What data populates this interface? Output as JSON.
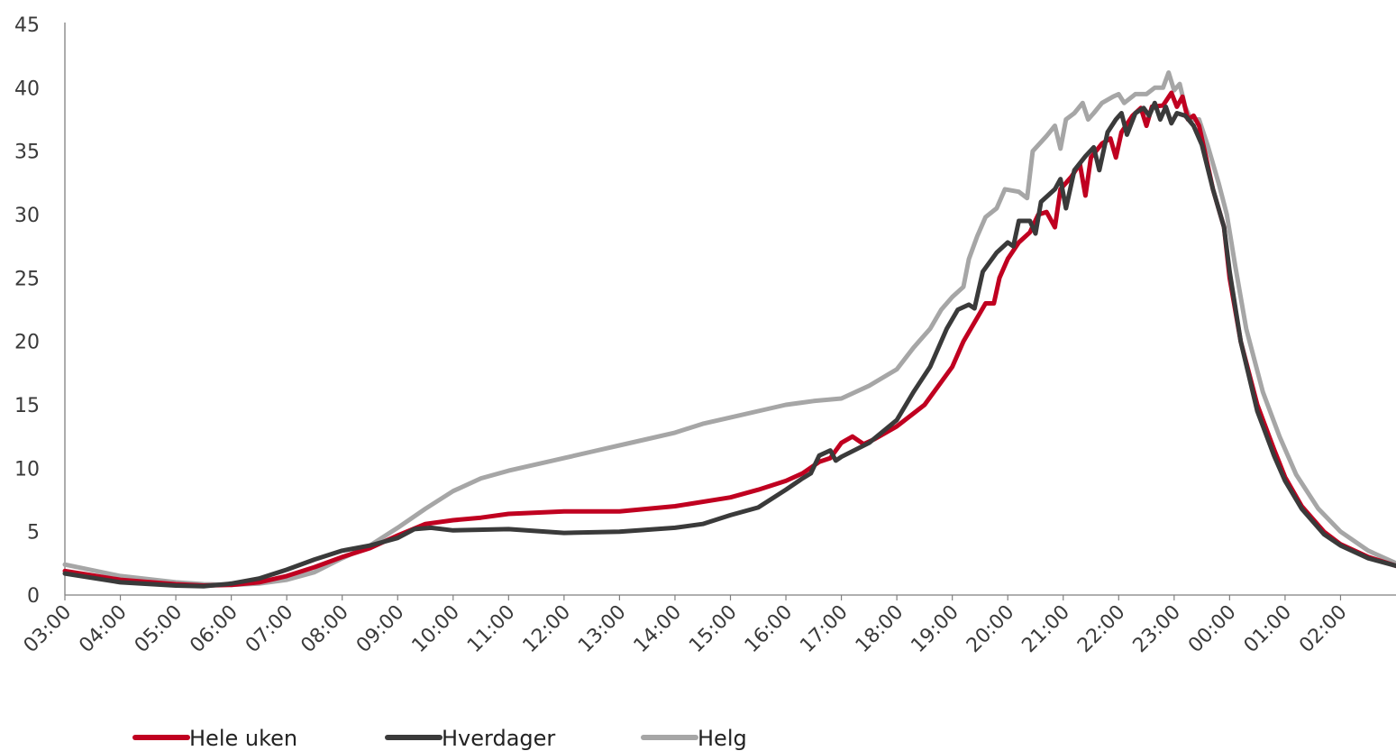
{
  "chart_data": {
    "type": "line",
    "title": "",
    "xlabel": "",
    "ylabel": "",
    "ylim": [
      0,
      45
    ],
    "yticks": [
      0,
      5,
      10,
      15,
      20,
      25,
      30,
      35,
      40,
      45
    ],
    "x_categories": [
      "03:00",
      "04:00",
      "05:00",
      "06:00",
      "07:00",
      "08:00",
      "09:00",
      "10:00",
      "11:00",
      "12:00",
      "13:00",
      "14:00",
      "15:00",
      "16:00",
      "17:00",
      "18:00",
      "19:00",
      "20:00",
      "21:00",
      "22:00",
      "23:00",
      "00:00",
      "01:00",
      "02:00"
    ],
    "x_unit": "hours after 03:00",
    "grid": false,
    "legend_position": "bottom-left",
    "series": [
      {
        "name": "Hele uken",
        "color": "#c00020",
        "points": [
          [
            0,
            1.9
          ],
          [
            1,
            1.2
          ],
          [
            2,
            0.85
          ],
          [
            2.5,
            0.75
          ],
          [
            3,
            0.8
          ],
          [
            3.5,
            1.0
          ],
          [
            4,
            1.5
          ],
          [
            4.5,
            2.2
          ],
          [
            5,
            3.0
          ],
          [
            5.5,
            3.7
          ],
          [
            6,
            4.7
          ],
          [
            6.5,
            5.6
          ],
          [
            7,
            5.9
          ],
          [
            7.5,
            6.1
          ],
          [
            8,
            6.4
          ],
          [
            9,
            6.6
          ],
          [
            10,
            6.6
          ],
          [
            11,
            7.0
          ],
          [
            12,
            7.7
          ],
          [
            12.5,
            8.3
          ],
          [
            13,
            9.0
          ],
          [
            13.3,
            9.6
          ],
          [
            13.6,
            10.5
          ],
          [
            13.8,
            10.8
          ],
          [
            14,
            12.0
          ],
          [
            14.2,
            12.5
          ],
          [
            14.4,
            11.9
          ],
          [
            14.6,
            12.3
          ],
          [
            15,
            13.3
          ],
          [
            15.5,
            15.0
          ],
          [
            16,
            18.0
          ],
          [
            16.2,
            20.0
          ],
          [
            16.4,
            21.5
          ],
          [
            16.6,
            23.0
          ],
          [
            16.75,
            23.0
          ],
          [
            16.85,
            25.0
          ],
          [
            17,
            26.5
          ],
          [
            17.2,
            27.8
          ],
          [
            17.4,
            28.6
          ],
          [
            17.55,
            30.0
          ],
          [
            17.7,
            30.2
          ],
          [
            17.85,
            29.0
          ],
          [
            17.95,
            32.0
          ],
          [
            18.15,
            33.0
          ],
          [
            18.3,
            34.0
          ],
          [
            18.4,
            31.5
          ],
          [
            18.5,
            34.5
          ],
          [
            18.7,
            35.6
          ],
          [
            18.85,
            36.0
          ],
          [
            18.95,
            34.5
          ],
          [
            19.05,
            36.5
          ],
          [
            19.25,
            37.8
          ],
          [
            19.4,
            38.4
          ],
          [
            19.5,
            37.0
          ],
          [
            19.6,
            38.5
          ],
          [
            19.8,
            38.6
          ],
          [
            19.95,
            39.6
          ],
          [
            20.05,
            38.5
          ],
          [
            20.15,
            39.3
          ],
          [
            20.25,
            37.5
          ],
          [
            20.35,
            37.8
          ],
          [
            20.45,
            37.0
          ],
          [
            20.55,
            35.0
          ],
          [
            20.7,
            32.0
          ],
          [
            20.9,
            29.0
          ],
          [
            21.0,
            25.0
          ],
          [
            21.2,
            20.0
          ],
          [
            21.5,
            15.0
          ],
          [
            21.8,
            11.5
          ],
          [
            22,
            9.3
          ],
          [
            22.3,
            7.0
          ],
          [
            22.7,
            5.0
          ],
          [
            23,
            4.0
          ],
          [
            23.5,
            3.0
          ],
          [
            24,
            2.3
          ]
        ]
      },
      {
        "name": "Hverdager",
        "color": "#3a3a3a",
        "points": [
          [
            0,
            1.7
          ],
          [
            1,
            1.0
          ],
          [
            2,
            0.75
          ],
          [
            2.5,
            0.7
          ],
          [
            3,
            0.9
          ],
          [
            3.5,
            1.3
          ],
          [
            4,
            2.0
          ],
          [
            4.5,
            2.8
          ],
          [
            5,
            3.5
          ],
          [
            5.5,
            3.9
          ],
          [
            6,
            4.5
          ],
          [
            6.3,
            5.2
          ],
          [
            6.6,
            5.3
          ],
          [
            7,
            5.1
          ],
          [
            8,
            5.2
          ],
          [
            9,
            4.9
          ],
          [
            10,
            5.0
          ],
          [
            11,
            5.3
          ],
          [
            11.5,
            5.6
          ],
          [
            12,
            6.3
          ],
          [
            12.5,
            6.9
          ],
          [
            13,
            8.3
          ],
          [
            13.3,
            9.2
          ],
          [
            13.45,
            9.6
          ],
          [
            13.6,
            11.0
          ],
          [
            13.8,
            11.4
          ],
          [
            13.9,
            10.6
          ],
          [
            14,
            10.9
          ],
          [
            14.5,
            12.0
          ],
          [
            15,
            13.8
          ],
          [
            15.3,
            16.0
          ],
          [
            15.6,
            18.0
          ],
          [
            15.9,
            21.0
          ],
          [
            16.1,
            22.5
          ],
          [
            16.3,
            22.9
          ],
          [
            16.4,
            22.6
          ],
          [
            16.55,
            25.5
          ],
          [
            16.8,
            27.0
          ],
          [
            17.0,
            27.8
          ],
          [
            17.1,
            27.5
          ],
          [
            17.2,
            29.5
          ],
          [
            17.4,
            29.5
          ],
          [
            17.5,
            28.5
          ],
          [
            17.6,
            31.0
          ],
          [
            17.85,
            32.0
          ],
          [
            17.95,
            32.8
          ],
          [
            18.05,
            30.5
          ],
          [
            18.2,
            33.5
          ],
          [
            18.4,
            34.6
          ],
          [
            18.55,
            35.3
          ],
          [
            18.65,
            33.5
          ],
          [
            18.8,
            36.5
          ],
          [
            18.95,
            37.5
          ],
          [
            19.05,
            38.0
          ],
          [
            19.15,
            36.3
          ],
          [
            19.3,
            38.0
          ],
          [
            19.45,
            38.4
          ],
          [
            19.55,
            37.8
          ],
          [
            19.65,
            38.8
          ],
          [
            19.75,
            37.5
          ],
          [
            19.85,
            38.5
          ],
          [
            19.95,
            37.2
          ],
          [
            20.05,
            38.0
          ],
          [
            20.2,
            37.8
          ],
          [
            20.35,
            37.0
          ],
          [
            20.5,
            35.5
          ],
          [
            20.7,
            32.0
          ],
          [
            20.9,
            29.0
          ],
          [
            21.0,
            25.5
          ],
          [
            21.2,
            20.0
          ],
          [
            21.5,
            14.5
          ],
          [
            21.8,
            11.0
          ],
          [
            22,
            9.0
          ],
          [
            22.3,
            6.8
          ],
          [
            22.7,
            4.8
          ],
          [
            23,
            3.9
          ],
          [
            23.5,
            2.9
          ],
          [
            24,
            2.3
          ]
        ]
      },
      {
        "name": "Helg",
        "color": "#a6a6a6",
        "points": [
          [
            0,
            2.4
          ],
          [
            1,
            1.5
          ],
          [
            2,
            1.0
          ],
          [
            2.5,
            0.85
          ],
          [
            3,
            0.8
          ],
          [
            3.5,
            0.9
          ],
          [
            4,
            1.2
          ],
          [
            4.5,
            1.8
          ],
          [
            5,
            2.9
          ],
          [
            5.5,
            3.9
          ],
          [
            6,
            5.3
          ],
          [
            6.5,
            6.8
          ],
          [
            7,
            8.2
          ],
          [
            7.5,
            9.2
          ],
          [
            8,
            9.8
          ],
          [
            8.5,
            10.3
          ],
          [
            9,
            10.8
          ],
          [
            9.5,
            11.3
          ],
          [
            10,
            11.8
          ],
          [
            10.5,
            12.3
          ],
          [
            11,
            12.8
          ],
          [
            11.5,
            13.5
          ],
          [
            12,
            14.0
          ],
          [
            12.5,
            14.5
          ],
          [
            13,
            15.0
          ],
          [
            13.5,
            15.3
          ],
          [
            14,
            15.5
          ],
          [
            14.5,
            16.5
          ],
          [
            15,
            17.8
          ],
          [
            15.3,
            19.5
          ],
          [
            15.6,
            21.0
          ],
          [
            15.8,
            22.5
          ],
          [
            16.0,
            23.5
          ],
          [
            16.2,
            24.3
          ],
          [
            16.3,
            26.5
          ],
          [
            16.45,
            28.3
          ],
          [
            16.6,
            29.8
          ],
          [
            16.8,
            30.5
          ],
          [
            16.95,
            32.0
          ],
          [
            17.2,
            31.8
          ],
          [
            17.35,
            31.3
          ],
          [
            17.45,
            35.0
          ],
          [
            17.7,
            36.2
          ],
          [
            17.85,
            37.0
          ],
          [
            17.95,
            35.2
          ],
          [
            18.05,
            37.5
          ],
          [
            18.2,
            38.0
          ],
          [
            18.35,
            38.8
          ],
          [
            18.45,
            37.5
          ],
          [
            18.55,
            38.0
          ],
          [
            18.7,
            38.8
          ],
          [
            18.9,
            39.3
          ],
          [
            19.0,
            39.5
          ],
          [
            19.1,
            38.8
          ],
          [
            19.3,
            39.5
          ],
          [
            19.5,
            39.5
          ],
          [
            19.65,
            40.0
          ],
          [
            19.8,
            40.0
          ],
          [
            19.9,
            41.2
          ],
          [
            20.0,
            39.8
          ],
          [
            20.1,
            40.3
          ],
          [
            20.2,
            38.5
          ],
          [
            20.3,
            37.5
          ],
          [
            20.45,
            37.5
          ],
          [
            20.6,
            35.5
          ],
          [
            20.8,
            32.5
          ],
          [
            20.95,
            30.0
          ],
          [
            21.1,
            26.0
          ],
          [
            21.3,
            21.0
          ],
          [
            21.6,
            16.0
          ],
          [
            21.9,
            12.5
          ],
          [
            22.2,
            9.5
          ],
          [
            22.6,
            6.8
          ],
          [
            23,
            5.0
          ],
          [
            23.5,
            3.5
          ],
          [
            24,
            2.5
          ]
        ]
      }
    ]
  }
}
